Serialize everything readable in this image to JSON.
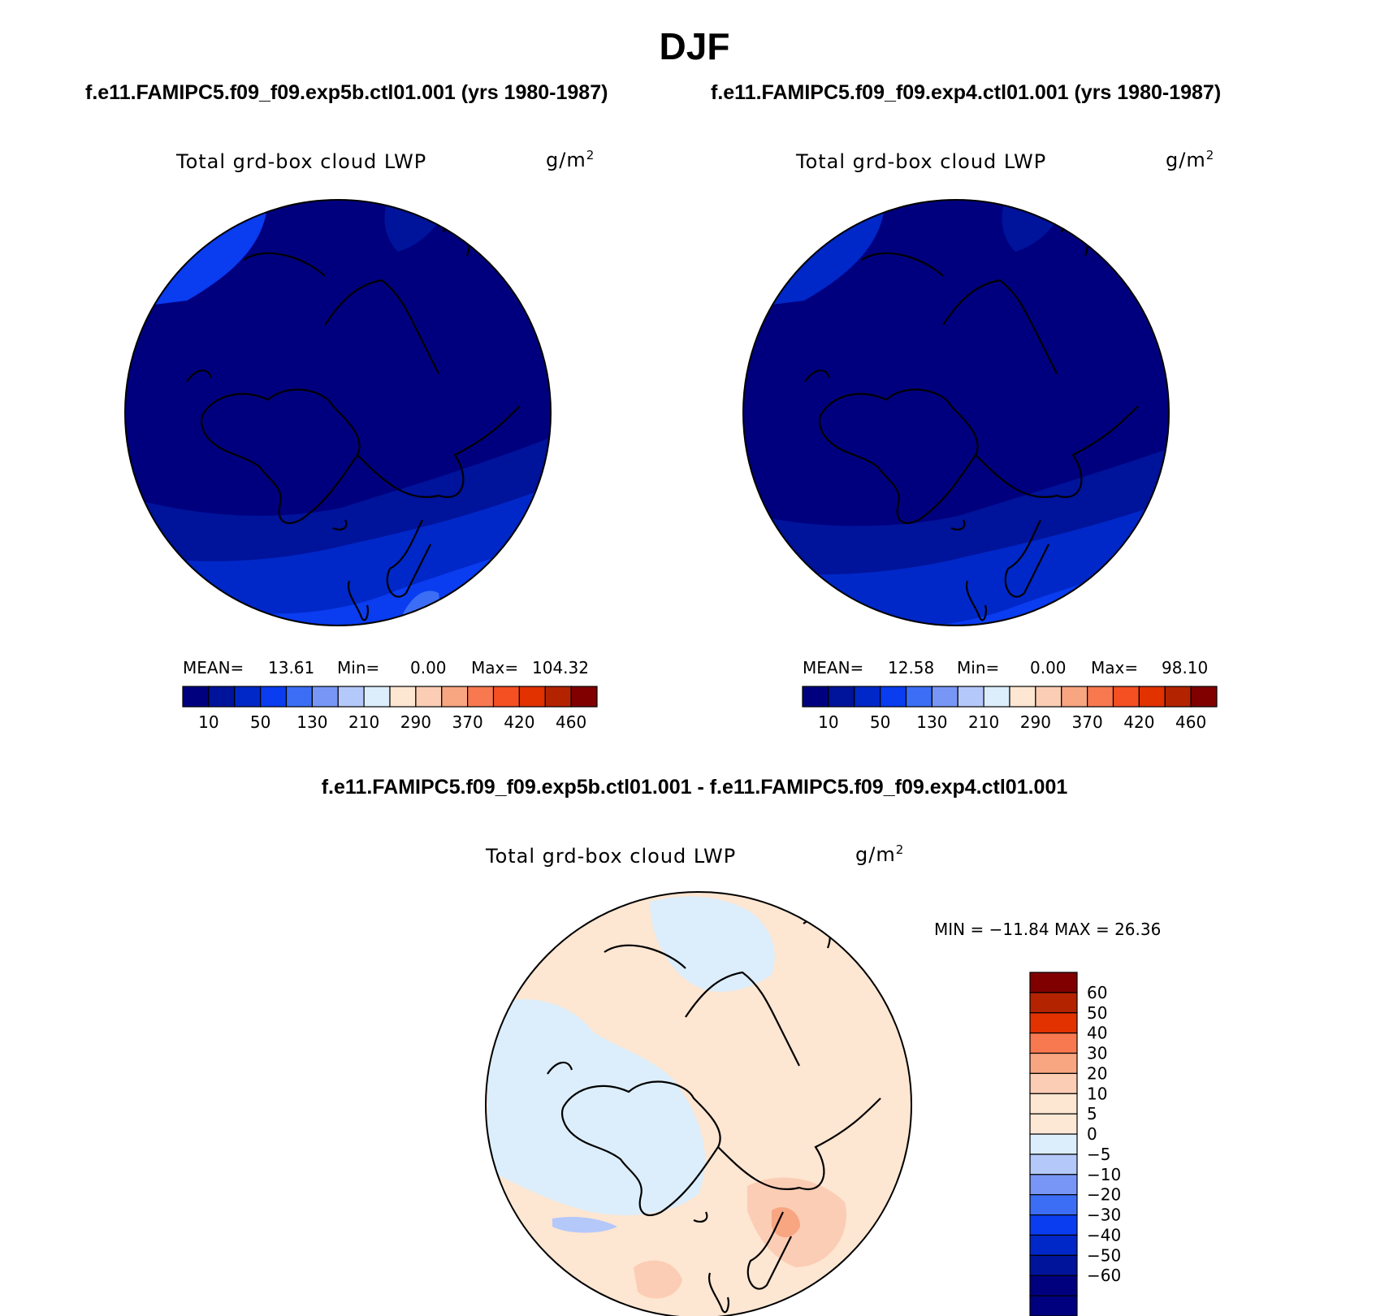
{
  "page": {
    "title": "DJF",
    "case1_title": "f.e11.FAMIPC5.f09_f09.exp5b.ctl01.001 (yrs 1980-1987)",
    "case2_title": "f.e11.FAMIPC5.f09_f09.exp4.ctl01.001 (yrs 1980-1987)",
    "diff_title": "f.e11.FAMIPC5.f09_f09.exp5b.ctl01.001 - f.e11.FAMIPC5.f09_f09.exp4.ctl01.001"
  },
  "chart_data": [
    {
      "type": "heatmap",
      "projection": "north-polar-stereographic",
      "variable": "Total grd-box cloud LWP",
      "units_base": "g/m",
      "units_exp": "2",
      "stats": {
        "mean_label": "MEAN=",
        "mean": "13.61",
        "min_label": "Min=",
        "min": "0.00",
        "max_label": "Max=",
        "max": "104.32"
      },
      "colorbar_labels": [
        "10",
        "50",
        "130",
        "210",
        "290",
        "370",
        "420",
        "460"
      ],
      "colorbar_colors": [
        "#00007f",
        "#00139b",
        "#0028c8",
        "#0a3cf0",
        "#3c6ef5",
        "#7896f5",
        "#b4c8fa",
        "#dceefb",
        "#fde6d2",
        "#fbcdb4",
        "#f8a582",
        "#f87850",
        "#f55022",
        "#e13200",
        "#b42300",
        "#800000"
      ]
    },
    {
      "type": "heatmap",
      "projection": "north-polar-stereographic",
      "variable": "Total grd-box cloud LWP",
      "units_base": "g/m",
      "units_exp": "2",
      "stats": {
        "mean_label": "MEAN=",
        "mean": "12.58",
        "min_label": "Min=",
        "min": "0.00",
        "max_label": "Max=",
        "max": "98.10"
      },
      "colorbar_labels": [
        "10",
        "50",
        "130",
        "210",
        "290",
        "370",
        "420",
        "460"
      ],
      "colorbar_colors": [
        "#00007f",
        "#00139b",
        "#0028c8",
        "#0a3cf0",
        "#3c6ef5",
        "#7896f5",
        "#b4c8fa",
        "#dceefb",
        "#fde6d2",
        "#fbcdb4",
        "#f8a582",
        "#f87850",
        "#f55022",
        "#e13200",
        "#b42300",
        "#800000"
      ]
    },
    {
      "type": "heatmap",
      "projection": "north-polar-stereographic",
      "variable": "Total grd-box cloud LWP",
      "units_base": "g/m",
      "units_exp": "2",
      "stats_text": "MIN = −11.84 MAX =  26.36",
      "colorbar_labels": [
        "60",
        "50",
        "40",
        "30",
        "20",
        "10",
        "5",
        "0",
        "−5",
        "−10",
        "−20",
        "−30",
        "−40",
        "−50",
        "−60"
      ],
      "colorbar_colors": [
        "#800000",
        "#b42300",
        "#e13200",
        "#f87850",
        "#f8a582",
        "#fbcdb4",
        "#fde6d2",
        "#fde8d6",
        "#dceefb",
        "#b4c8fa",
        "#7896f5",
        "#3c6ef5",
        "#0a3cf0",
        "#0028c8",
        "#00139b",
        "#00007f"
      ]
    }
  ]
}
